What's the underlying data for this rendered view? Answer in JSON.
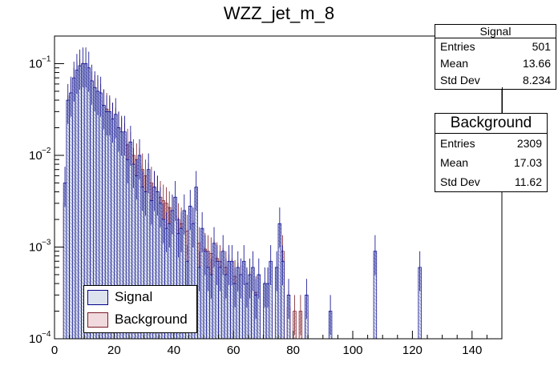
{
  "chart_data": {
    "type": "bar",
    "title": "WZZ_jet_m_8",
    "xlabel": "",
    "ylabel": "",
    "xlim": [
      0,
      150
    ],
    "ylim": [
      0.0001,
      0.2
    ],
    "yscale": "log",
    "x_ticks": [
      0,
      20,
      40,
      60,
      80,
      100,
      120,
      140
    ],
    "y_ticks": [
      {
        "value": 0.0001,
        "label": "10",
        "exp": "−4"
      },
      {
        "value": 0.001,
        "label": "10",
        "exp": "−3"
      },
      {
        "value": 0.01,
        "label": "10",
        "exp": "−2"
      },
      {
        "value": 0.1,
        "label": "10",
        "exp": "−1"
      }
    ],
    "bin_width": 1,
    "series": [
      {
        "name": "Signal",
        "line_color": "#00008b",
        "fill_color": "#dde2ef",
        "x": [
          3,
          4,
          5,
          6,
          7,
          8,
          9,
          10,
          11,
          12,
          13,
          14,
          15,
          16,
          17,
          18,
          19,
          20,
          21,
          22,
          23,
          24,
          25,
          26,
          27,
          28,
          29,
          30,
          31,
          32,
          33,
          34,
          35,
          36,
          37,
          38,
          39,
          40,
          41,
          42,
          43,
          44,
          45,
          46,
          47,
          48,
          49,
          50,
          51,
          52,
          53,
          54,
          55,
          56,
          57,
          58,
          59,
          60,
          61,
          62,
          63,
          64,
          65,
          66,
          67,
          68,
          70,
          71,
          72,
          74,
          75,
          76,
          78,
          84,
          92,
          107,
          122
        ],
        "values": [
          0.005,
          0.04,
          0.048,
          0.07,
          0.085,
          0.095,
          0.1,
          0.1,
          0.09,
          0.065,
          0.055,
          0.05,
          0.048,
          0.035,
          0.03,
          0.03,
          0.025,
          0.028,
          0.02,
          0.018,
          0.018,
          0.009,
          0.014,
          0.008,
          0.006,
          0.01,
          0.0045,
          0.004,
          0.007,
          0.0032,
          0.0045,
          0.004,
          0.003,
          0.002,
          0.0016,
          0.0018,
          0.0025,
          0.0035,
          0.0014,
          0.0016,
          0.0025,
          0.0007,
          0.0028,
          0.0018,
          0.0045,
          0.0006,
          0.0016,
          0.0009,
          0.0006,
          0.0005,
          0.0011,
          0.0007,
          0.0006,
          0.0009,
          0.0005,
          0.0007,
          0.0007,
          0.0004,
          0.0006,
          0.0005,
          0.0007,
          0.0004,
          0.0005,
          0.0006,
          0.0003,
          0.0005,
          0.0004,
          0.0004,
          0.0007,
          0.0006,
          0.0018,
          0.0007,
          0.0003,
          0.0003,
          0.0002,
          0.0009,
          0.0006
        ],
        "stats": {
          "entries": "501",
          "mean": "13.66",
          "std_dev": "8.234"
        }
      },
      {
        "name": "Background",
        "line_color": "#7a1c28",
        "fill_color": "#f0dadd",
        "x": [
          3,
          4,
          5,
          6,
          7,
          8,
          9,
          10,
          11,
          12,
          13,
          14,
          15,
          16,
          17,
          18,
          19,
          20,
          21,
          22,
          23,
          24,
          25,
          26,
          27,
          28,
          29,
          30,
          31,
          32,
          33,
          34,
          35,
          36,
          37,
          38,
          39,
          40,
          41,
          42,
          43,
          44,
          45,
          46,
          47,
          48,
          49,
          50,
          51,
          52,
          53,
          54,
          55,
          56,
          57,
          58,
          59,
          60,
          61,
          62,
          63,
          64,
          65,
          66,
          67,
          68,
          70,
          72,
          74,
          76,
          78,
          80,
          82,
          84
        ],
        "values": [
          0.003,
          0.03,
          0.045,
          0.06,
          0.07,
          0.075,
          0.07,
          0.068,
          0.06,
          0.055,
          0.05,
          0.045,
          0.04,
          0.035,
          0.032,
          0.028,
          0.025,
          0.022,
          0.02,
          0.017,
          0.015,
          0.013,
          0.012,
          0.01,
          0.009,
          0.008,
          0.007,
          0.006,
          0.0055,
          0.005,
          0.0045,
          0.004,
          0.0035,
          0.0032,
          0.003,
          0.0027,
          0.0024,
          0.0022,
          0.002,
          0.0018,
          0.0016,
          0.0015,
          0.0014,
          0.0013,
          0.0012,
          0.0011,
          0.001,
          0.00095,
          0.0009,
          0.00085,
          0.0008,
          0.00075,
          0.0007,
          0.00065,
          0.0006,
          0.00055,
          0.0005,
          0.00048,
          0.00045,
          0.00042,
          0.0004,
          0.00038,
          0.00036,
          0.00034,
          0.00032,
          0.0003,
          0.00028,
          0.00026,
          0.00024,
          0.0009,
          0.00022,
          0.0002,
          0.0002,
          0.0002
        ],
        "stats": {
          "entries": "2309",
          "mean": "17.03",
          "std_dev": "11.62"
        }
      }
    ]
  },
  "stats_labels": {
    "entries": "Entries",
    "mean": "Mean",
    "std_dev": "Std Dev"
  },
  "legend": {
    "signal": "Signal",
    "background": "Background"
  }
}
